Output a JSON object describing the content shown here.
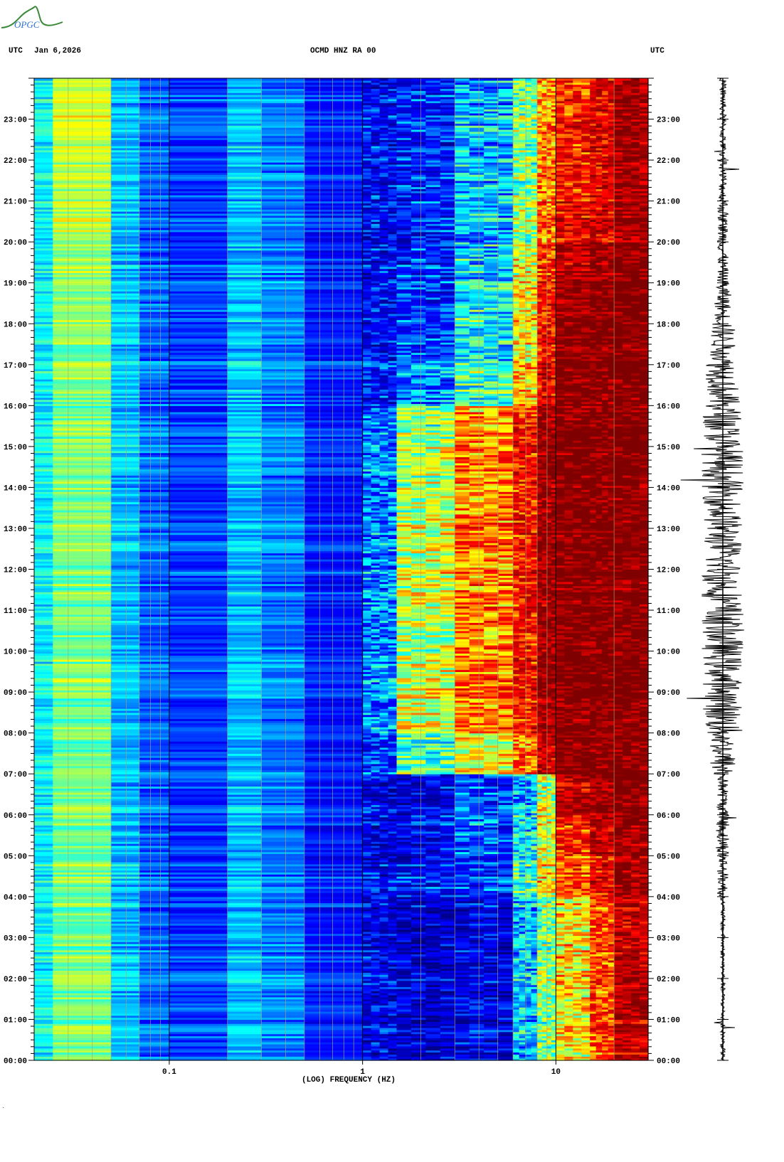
{
  "logo": {
    "text": "OPGC",
    "colors": {
      "curve": "#3a8a3a",
      "text": "#2a6fd6"
    }
  },
  "header": {
    "left_tz": "UTC",
    "date": "Jan 6,2026",
    "station": "OCMD HNZ RA 00",
    "right_tz": "UTC"
  },
  "chart_data": {
    "type": "heatmap",
    "title": "OCMD HNZ RA 00",
    "xlabel": "(LOG) FREQUENCY (HZ)",
    "ylabel": "UTC",
    "x_scale": "log",
    "xlim": [
      0.02,
      30
    ],
    "ylim_hours": [
      0,
      24
    ],
    "x_ticks": [
      {
        "value": 0.1,
        "label": "0.1"
      },
      {
        "value": 1,
        "label": "1"
      },
      {
        "value": 10,
        "label": "10"
      }
    ],
    "y_ticks": [
      "00:00",
      "01:00",
      "02:00",
      "03:00",
      "04:00",
      "05:00",
      "06:00",
      "07:00",
      "08:00",
      "09:00",
      "10:00",
      "11:00",
      "12:00",
      "13:00",
      "14:00",
      "15:00",
      "16:00",
      "17:00",
      "18:00",
      "19:00",
      "20:00",
      "21:00",
      "22:00",
      "23:00"
    ],
    "grid": true,
    "colormap": "jet",
    "colormap_stops": [
      "#00007f",
      "#0000ff",
      "#00ffff",
      "#ffff00",
      "#ff0000",
      "#7f0000"
    ],
    "frequency_bands_hz": [
      [
        0.02,
        0.025
      ],
      [
        0.025,
        0.05
      ],
      [
        0.05,
        0.07
      ],
      [
        0.07,
        0.1
      ],
      [
        0.1,
        0.2
      ],
      [
        0.2,
        0.3
      ],
      [
        0.3,
        0.5
      ],
      [
        0.5,
        1
      ],
      [
        1,
        1.5
      ],
      [
        1.5,
        3
      ],
      [
        3,
        6
      ],
      [
        6,
        8
      ],
      [
        8,
        10
      ],
      [
        10,
        15
      ],
      [
        15,
        20
      ],
      [
        20,
        30
      ]
    ],
    "hourly_relative_power": [
      [
        0.4,
        0.5,
        0.35,
        0.28,
        0.25,
        0.35,
        0.3,
        0.22,
        0.15,
        0.12,
        0.15,
        0.35,
        0.5,
        0.6,
        0.75,
        0.9
      ],
      [
        0.4,
        0.5,
        0.35,
        0.28,
        0.25,
        0.35,
        0.3,
        0.22,
        0.15,
        0.12,
        0.15,
        0.35,
        0.5,
        0.6,
        0.75,
        0.9
      ],
      [
        0.4,
        0.5,
        0.35,
        0.28,
        0.25,
        0.35,
        0.3,
        0.22,
        0.15,
        0.12,
        0.15,
        0.35,
        0.5,
        0.62,
        0.75,
        0.9
      ],
      [
        0.4,
        0.5,
        0.35,
        0.28,
        0.25,
        0.35,
        0.3,
        0.22,
        0.15,
        0.12,
        0.15,
        0.35,
        0.5,
        0.62,
        0.76,
        0.9
      ],
      [
        0.4,
        0.5,
        0.35,
        0.28,
        0.25,
        0.35,
        0.3,
        0.22,
        0.16,
        0.2,
        0.25,
        0.45,
        0.6,
        0.75,
        0.85,
        0.95
      ],
      [
        0.4,
        0.5,
        0.35,
        0.28,
        0.25,
        0.35,
        0.3,
        0.22,
        0.16,
        0.18,
        0.28,
        0.4,
        0.58,
        0.8,
        0.92,
        0.97
      ],
      [
        0.4,
        0.5,
        0.35,
        0.28,
        0.25,
        0.35,
        0.3,
        0.22,
        0.16,
        0.15,
        0.25,
        0.35,
        0.55,
        0.9,
        0.95,
        1.0
      ],
      [
        0.4,
        0.5,
        0.35,
        0.28,
        0.25,
        0.35,
        0.3,
        0.22,
        0.25,
        0.45,
        0.6,
        0.72,
        0.9,
        1.0,
        1.0,
        1.0
      ],
      [
        0.4,
        0.5,
        0.35,
        0.28,
        0.25,
        0.35,
        0.3,
        0.22,
        0.32,
        0.58,
        0.72,
        0.82,
        0.95,
        1.0,
        1.0,
        1.0
      ],
      [
        0.4,
        0.5,
        0.35,
        0.28,
        0.25,
        0.35,
        0.3,
        0.22,
        0.3,
        0.55,
        0.7,
        0.8,
        0.95,
        1.0,
        1.0,
        1.0
      ],
      [
        0.4,
        0.5,
        0.35,
        0.28,
        0.25,
        0.35,
        0.3,
        0.22,
        0.3,
        0.55,
        0.7,
        0.82,
        0.95,
        1.0,
        1.0,
        1.0
      ],
      [
        0.4,
        0.5,
        0.35,
        0.28,
        0.25,
        0.35,
        0.3,
        0.22,
        0.32,
        0.58,
        0.72,
        0.82,
        0.95,
        1.0,
        1.0,
        1.0
      ],
      [
        0.4,
        0.5,
        0.35,
        0.28,
        0.25,
        0.35,
        0.3,
        0.22,
        0.3,
        0.56,
        0.7,
        0.8,
        0.95,
        1.0,
        1.0,
        1.0
      ],
      [
        0.4,
        0.5,
        0.35,
        0.28,
        0.25,
        0.35,
        0.3,
        0.22,
        0.3,
        0.55,
        0.7,
        0.8,
        0.95,
        1.0,
        1.0,
        1.0
      ],
      [
        0.4,
        0.5,
        0.35,
        0.28,
        0.25,
        0.35,
        0.3,
        0.22,
        0.3,
        0.55,
        0.7,
        0.8,
        0.95,
        1.0,
        1.0,
        1.0
      ],
      [
        0.4,
        0.5,
        0.35,
        0.28,
        0.25,
        0.35,
        0.3,
        0.22,
        0.28,
        0.5,
        0.68,
        0.8,
        0.95,
        1.0,
        1.0,
        1.0
      ],
      [
        0.4,
        0.5,
        0.35,
        0.28,
        0.25,
        0.35,
        0.3,
        0.22,
        0.2,
        0.3,
        0.45,
        0.65,
        0.85,
        1.0,
        1.0,
        1.0
      ],
      [
        0.4,
        0.5,
        0.35,
        0.28,
        0.25,
        0.35,
        0.3,
        0.22,
        0.18,
        0.25,
        0.4,
        0.6,
        0.82,
        1.0,
        1.0,
        1.0
      ],
      [
        0.4,
        0.5,
        0.35,
        0.28,
        0.25,
        0.35,
        0.3,
        0.22,
        0.18,
        0.22,
        0.4,
        0.6,
        0.8,
        0.95,
        1.0,
        1.0
      ],
      [
        0.4,
        0.52,
        0.35,
        0.28,
        0.25,
        0.35,
        0.3,
        0.22,
        0.18,
        0.22,
        0.38,
        0.58,
        0.78,
        0.92,
        0.97,
        1.0
      ],
      [
        0.4,
        0.55,
        0.35,
        0.28,
        0.25,
        0.35,
        0.3,
        0.22,
        0.18,
        0.22,
        0.35,
        0.52,
        0.72,
        0.85,
        0.88,
        0.96
      ],
      [
        0.4,
        0.55,
        0.35,
        0.28,
        0.25,
        0.35,
        0.3,
        0.22,
        0.18,
        0.22,
        0.35,
        0.5,
        0.7,
        0.8,
        0.85,
        0.95
      ],
      [
        0.4,
        0.57,
        0.35,
        0.28,
        0.25,
        0.35,
        0.3,
        0.22,
        0.18,
        0.22,
        0.35,
        0.5,
        0.7,
        0.8,
        0.85,
        0.95
      ],
      [
        0.4,
        0.57,
        0.35,
        0.28,
        0.25,
        0.35,
        0.3,
        0.22,
        0.18,
        0.22,
        0.35,
        0.5,
        0.68,
        0.78,
        0.85,
        0.95
      ]
    ],
    "trace_hourly_amplitude": [
      0.08,
      0.08,
      0.08,
      0.08,
      0.2,
      0.25,
      0.2,
      0.5,
      0.7,
      0.7,
      0.75,
      0.75,
      0.7,
      0.7,
      0.75,
      0.7,
      0.6,
      0.45,
      0.3,
      0.2,
      0.2,
      0.15,
      0.12,
      0.12
    ]
  }
}
